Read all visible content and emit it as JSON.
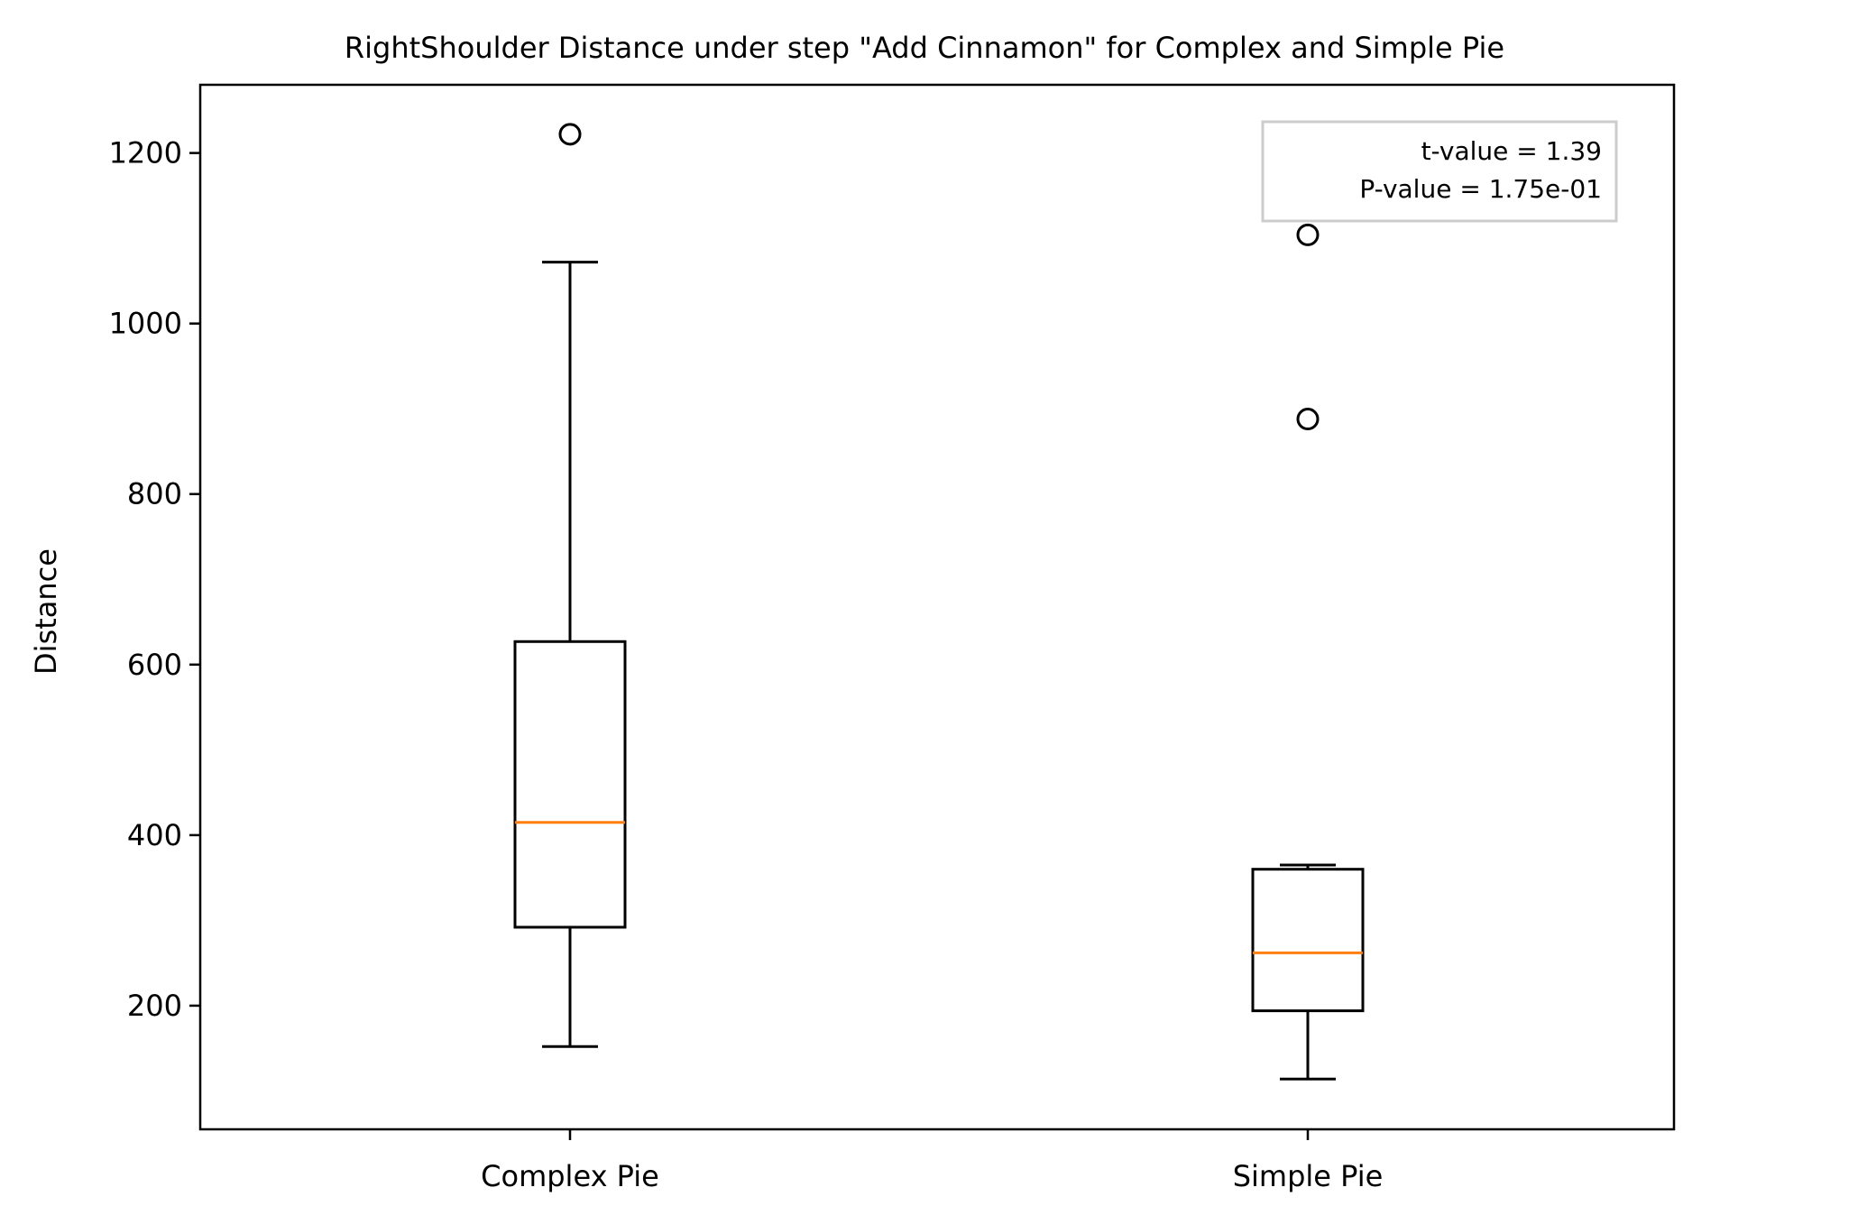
{
  "chart_data": {
    "type": "box",
    "title": "RightShoulder Distance under step \"Add Cinnamon\" for Complex and Simple Pie",
    "xlabel": "",
    "ylabel": "Distance",
    "categories": [
      "Complex Pie",
      "Simple Pie"
    ],
    "ylim": [
      55,
      1280
    ],
    "yticks": [
      200,
      400,
      600,
      800,
      1000,
      1200
    ],
    "grid": false,
    "boxes": [
      {
        "name": "Complex Pie",
        "whisker_low": 152,
        "q1": 292,
        "median": 415,
        "q3": 627,
        "whisker_high": 1072,
        "outliers": [
          1222
        ]
      },
      {
        "name": "Simple Pie",
        "whisker_low": 114,
        "q1": 194,
        "median": 262,
        "q3": 360,
        "whisker_high": 365,
        "outliers": [
          888,
          1104
        ]
      }
    ],
    "annotation": {
      "lines": [
        "t-value = 1.39",
        "P-value = 1.75e-01"
      ],
      "placement": "top-right"
    },
    "colors": {
      "box": "#000000",
      "median": "#ff7f0e",
      "annotation_border": "#cccccc"
    }
  }
}
